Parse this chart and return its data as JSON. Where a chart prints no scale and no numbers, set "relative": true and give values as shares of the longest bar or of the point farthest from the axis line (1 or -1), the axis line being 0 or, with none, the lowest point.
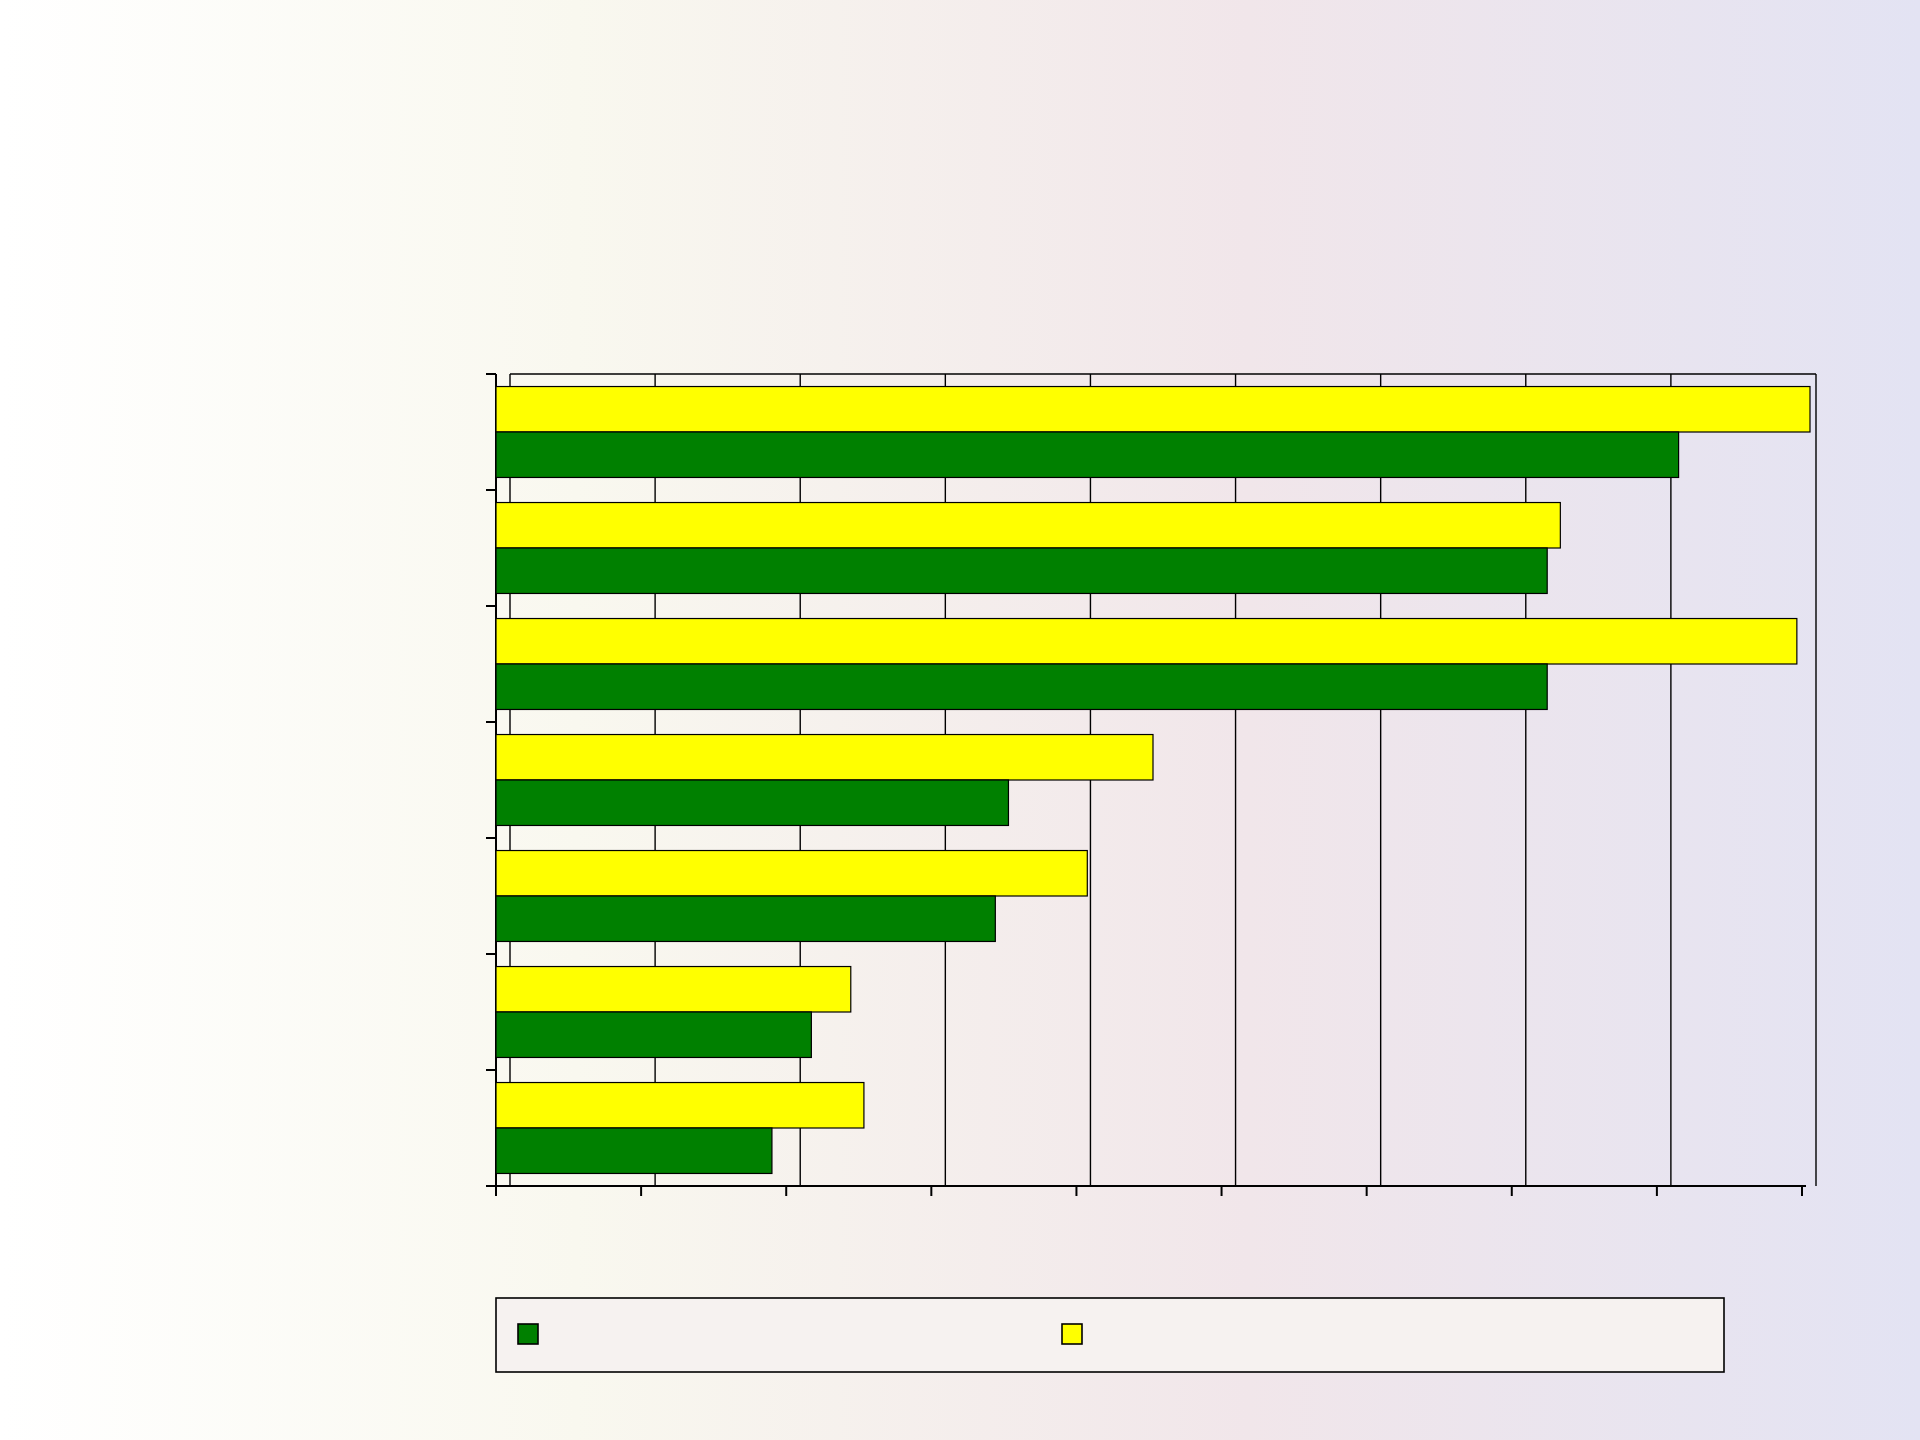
{
  "chart_data": {
    "type": "bar",
    "orientation": "horizontal",
    "relative": true,
    "categories": [
      null,
      null,
      null,
      null,
      null,
      null,
      null
    ],
    "series": [
      {
        "color": "#ffff00",
        "values": [
          1,
          0.81,
          0.99,
          0.5,
          0.45,
          0.27,
          0.28
        ]
      },
      {
        "color": "#008000",
        "values": [
          0.9,
          0.8,
          0.8,
          0.39,
          0.38,
          0.24,
          0.21
        ]
      }
    ],
    "grid": true
  }
}
